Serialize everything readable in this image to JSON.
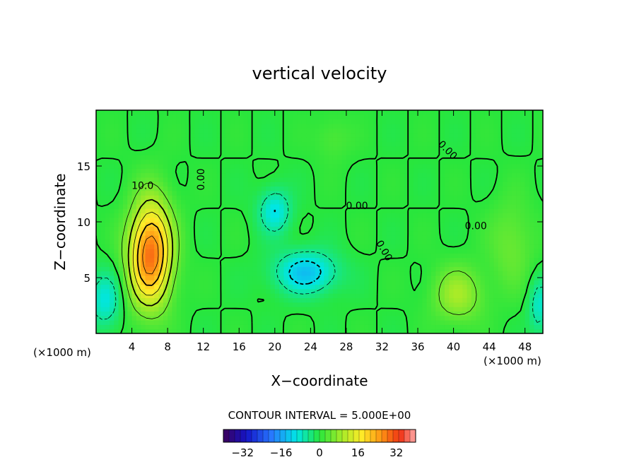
{
  "chart_data": {
    "type": "heatmap",
    "title": "vertical velocity",
    "xlabel": "X−coordinate",
    "ylabel": "Z−coordinate",
    "x_unit_left": "(×1000 m)",
    "x_unit_right": "(×1000 m)",
    "xlim": [
      0,
      50
    ],
    "ylim": [
      0,
      20
    ],
    "x_ticks": [
      4,
      8,
      12,
      16,
      20,
      24,
      28,
      32,
      36,
      40,
      44,
      48
    ],
    "x_tick_labels": [
      "4",
      "8",
      "12",
      "16",
      "20",
      "24",
      "28",
      "32",
      "36",
      "40",
      "44",
      "48"
    ],
    "y_ticks": [
      5,
      10,
      15
    ],
    "y_tick_labels": [
      "5",
      "10",
      "15"
    ],
    "contour_interval_label": "CONTOUR INTERVAL = 5.000E+00",
    "contour_interval": 5,
    "colorbar": {
      "range": [
        -40,
        40
      ],
      "ticks": [
        -32,
        -16,
        0,
        16,
        32
      ],
      "tick_labels": [
        "−32",
        "−16",
        "0",
        "16",
        "32"
      ]
    },
    "contour_labels": [
      {
        "text": "10.0",
        "x": 5.2,
        "z": 13.2
      },
      {
        "text": "0.00",
        "x": 11.8,
        "z": 13.8,
        "rotate": -90
      },
      {
        "text": "0.00",
        "x": 29.2,
        "z": 11.4
      },
      {
        "text": "0.00",
        "x": 39.3,
        "z": 16.4,
        "rotate": 45
      },
      {
        "text": "0.00",
        "x": 42.5,
        "z": 9.6
      },
      {
        "text": "0.00",
        "x": 32.2,
        "z": 7.4,
        "rotate": 60
      }
    ],
    "features": [
      {
        "type": "updraft",
        "x": 6.0,
        "z": 6.5,
        "sx": 2.4,
        "sz": 4.2,
        "peak": 24
      },
      {
        "type": "updraft",
        "x": 6.3,
        "z": 9.5,
        "sx": 2.2,
        "sz": 4.0,
        "peak": 8
      },
      {
        "type": "downdraft",
        "x": 23.5,
        "z": 5.5,
        "sx": 3.5,
        "sz": 1.9,
        "peak": -13
      },
      {
        "type": "downdraft",
        "x": 20.0,
        "z": 11.0,
        "sx": 1.8,
        "sz": 2.0,
        "peak": -10
      },
      {
        "type": "downdraft",
        "x": 1.0,
        "z": 3.0,
        "sx": 1.8,
        "sz": 2.5,
        "peak": -9
      },
      {
        "type": "downdraft",
        "x": 49.6,
        "z": 2.5,
        "sx": 1.2,
        "sz": 2.5,
        "peak": -8
      },
      {
        "type": "updraft",
        "x": 40.5,
        "z": 3.5,
        "sx": 2.8,
        "sz": 2.5,
        "peak": 9
      },
      {
        "type": "updraft",
        "x": 46.5,
        "z": 8.0,
        "sx": 2.5,
        "sz": 4.0,
        "peak": 5
      },
      {
        "type": "updraft",
        "x": 26.5,
        "z": 17.5,
        "sx": 2.0,
        "sz": 2.0,
        "peak": 3
      }
    ]
  }
}
